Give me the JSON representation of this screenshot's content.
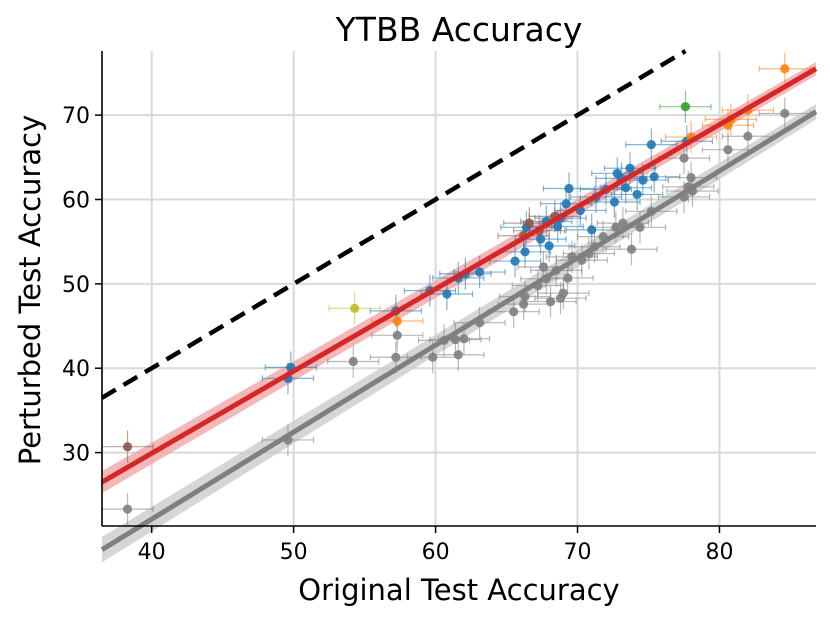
{
  "chart_data": {
    "type": "scatter",
    "title": "YTBB Accuracy",
    "xlabel": "Original Test Accuracy",
    "ylabel": "Perturbed Test Accuracy",
    "xlim": [
      36.5,
      86.8
    ],
    "ylim": [
      21.3,
      77.6
    ],
    "xticks": [
      40,
      50,
      60,
      70,
      80
    ],
    "yticks": [
      30,
      40,
      50,
      60,
      70
    ],
    "grid": true,
    "reference_line": {
      "style": "dashed",
      "color": "#000000",
      "slope": 1,
      "intercept": 0
    },
    "fit_lines": [
      {
        "color": "#d62728",
        "band_color": "#f0a0a0",
        "x0": 36.5,
        "y0": 26.5,
        "x1": 86.8,
        "y1": 75.5,
        "band": 1.3
      },
      {
        "color": "#7f7f7f",
        "band_color": "#c8c8c8",
        "x0": 36.5,
        "y0": 18.5,
        "x1": 86.8,
        "y1": 70.4,
        "band": 1.5
      }
    ],
    "series": [
      {
        "color": "#1f77b4",
        "points": [
          [
            49.6,
            38.8
          ],
          [
            49.8,
            40.1
          ],
          [
            57.2,
            46.8
          ],
          [
            59.6,
            49.2
          ],
          [
            60.8,
            48.8
          ],
          [
            61.6,
            50.7
          ],
          [
            62.1,
            51.2
          ],
          [
            63.1,
            51.4
          ],
          [
            65.6,
            52.7
          ],
          [
            66.3,
            53.8
          ],
          [
            66.4,
            56.7
          ],
          [
            67.4,
            55.3
          ],
          [
            67.8,
            57.4
          ],
          [
            68.0,
            54.5
          ],
          [
            68.6,
            56.8
          ],
          [
            68.8,
            57.8
          ],
          [
            69.2,
            59.5
          ],
          [
            69.4,
            61.3
          ],
          [
            70.2,
            58.7
          ],
          [
            71.0,
            56.4
          ],
          [
            71.3,
            60.3
          ],
          [
            72.0,
            61.2
          ],
          [
            72.6,
            59.7
          ],
          [
            72.8,
            63.1
          ],
          [
            73.1,
            62.5
          ],
          [
            73.4,
            61.4
          ],
          [
            73.7,
            63.7
          ],
          [
            74.2,
            60.6
          ],
          [
            74.6,
            62.3
          ],
          [
            75.2,
            66.5
          ],
          [
            75.4,
            62.7
          ],
          [
            77.7,
            66.9
          ]
        ]
      },
      {
        "color": "#7f7f7f",
        "points": [
          [
            38.3,
            23.3
          ],
          [
            49.6,
            31.5
          ],
          [
            54.2,
            40.8
          ],
          [
            57.2,
            41.3
          ],
          [
            57.3,
            43.9
          ],
          [
            59.8,
            41.3
          ],
          [
            60.6,
            43.3
          ],
          [
            61.4,
            43.4
          ],
          [
            61.6,
            41.6
          ],
          [
            62.0,
            43.5
          ],
          [
            63.1,
            45.4
          ],
          [
            65.5,
            46.7
          ],
          [
            66.2,
            47.6
          ],
          [
            66.3,
            48.5
          ],
          [
            67.2,
            49.8
          ],
          [
            67.6,
            52.0
          ],
          [
            67.8,
            50.6
          ],
          [
            68.1,
            47.9
          ],
          [
            68.5,
            51.6
          ],
          [
            68.8,
            48.3
          ],
          [
            69.0,
            48.9
          ],
          [
            69.3,
            50.7
          ],
          [
            69.6,
            53.2
          ],
          [
            70.3,
            52.8
          ],
          [
            70.8,
            53.6
          ],
          [
            71.2,
            54.4
          ],
          [
            71.8,
            55.6
          ],
          [
            72.7,
            56.7
          ],
          [
            73.2,
            57.2
          ],
          [
            73.8,
            54.1
          ],
          [
            74.4,
            56.7
          ],
          [
            75.2,
            58.6
          ],
          [
            77.5,
            60.3
          ],
          [
            77.8,
            61.5
          ],
          [
            78.0,
            62.6
          ],
          [
            78.1,
            61.0
          ],
          [
            80.6,
            65.9
          ],
          [
            82.0,
            67.5
          ],
          [
            84.6,
            70.2
          ],
          [
            77.5,
            64.9
          ]
        ]
      },
      {
        "color": "#8c564b",
        "points": [
          [
            38.3,
            30.7
          ],
          [
            66.2,
            55.7
          ],
          [
            66.6,
            57.2
          ],
          [
            67.3,
            56.3
          ],
          [
            68.4,
            58.0
          ]
        ]
      },
      {
        "color": "#bcbd22",
        "points": [
          [
            54.3,
            47.1
          ]
        ]
      },
      {
        "color": "#ff7f0e",
        "points": [
          [
            57.3,
            45.6
          ],
          [
            78.0,
            67.4
          ],
          [
            80.6,
            68.8
          ],
          [
            80.8,
            69.5
          ],
          [
            82.0,
            70.6
          ],
          [
            84.6,
            75.5
          ]
        ]
      },
      {
        "color": "#2ca02c",
        "points": [
          [
            77.6,
            71.0
          ]
        ]
      }
    ]
  }
}
